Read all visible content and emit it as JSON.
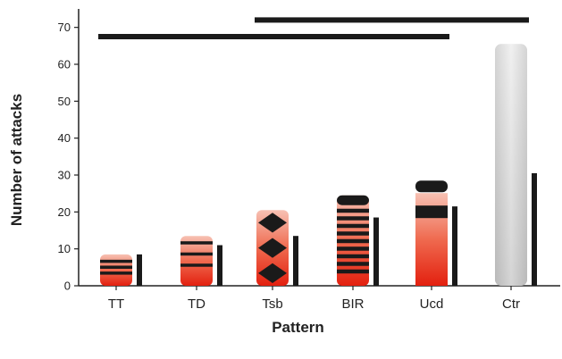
{
  "chart_data": {
    "type": "bar",
    "xlabel": "Pattern",
    "ylabel": "Number of attacks",
    "ylim": [
      0,
      75
    ],
    "yticks": [
      0,
      10,
      20,
      30,
      40,
      50,
      60,
      70
    ],
    "categories": [
      "TT",
      "TD",
      "Tsb",
      "BIR",
      "Ucd",
      "Ctr"
    ],
    "series": [
      {
        "values": [
          8.5,
          13.5,
          20.5,
          24.5,
          28.5,
          65.5
        ]
      },
      {
        "values": [
          8.5,
          11.0,
          13.5,
          18.5,
          21.5,
          30.5
        ]
      }
    ],
    "bar_styles": [
      "stripes",
      "stripes",
      "diamonds",
      "stripes",
      "blocks",
      "plain-grey"
    ],
    "significance_lines": [
      {
        "from": "TT",
        "to": "Ucd",
        "y": 67.5
      },
      {
        "from": "Tsb",
        "to": "Ctr",
        "y": 72.0
      }
    ],
    "colors": {
      "bar_red": "#e8311f",
      "bar_grey": "#b8b8b8",
      "dark": "#1a1a1a"
    },
    "grid": false,
    "legend": "none"
  }
}
